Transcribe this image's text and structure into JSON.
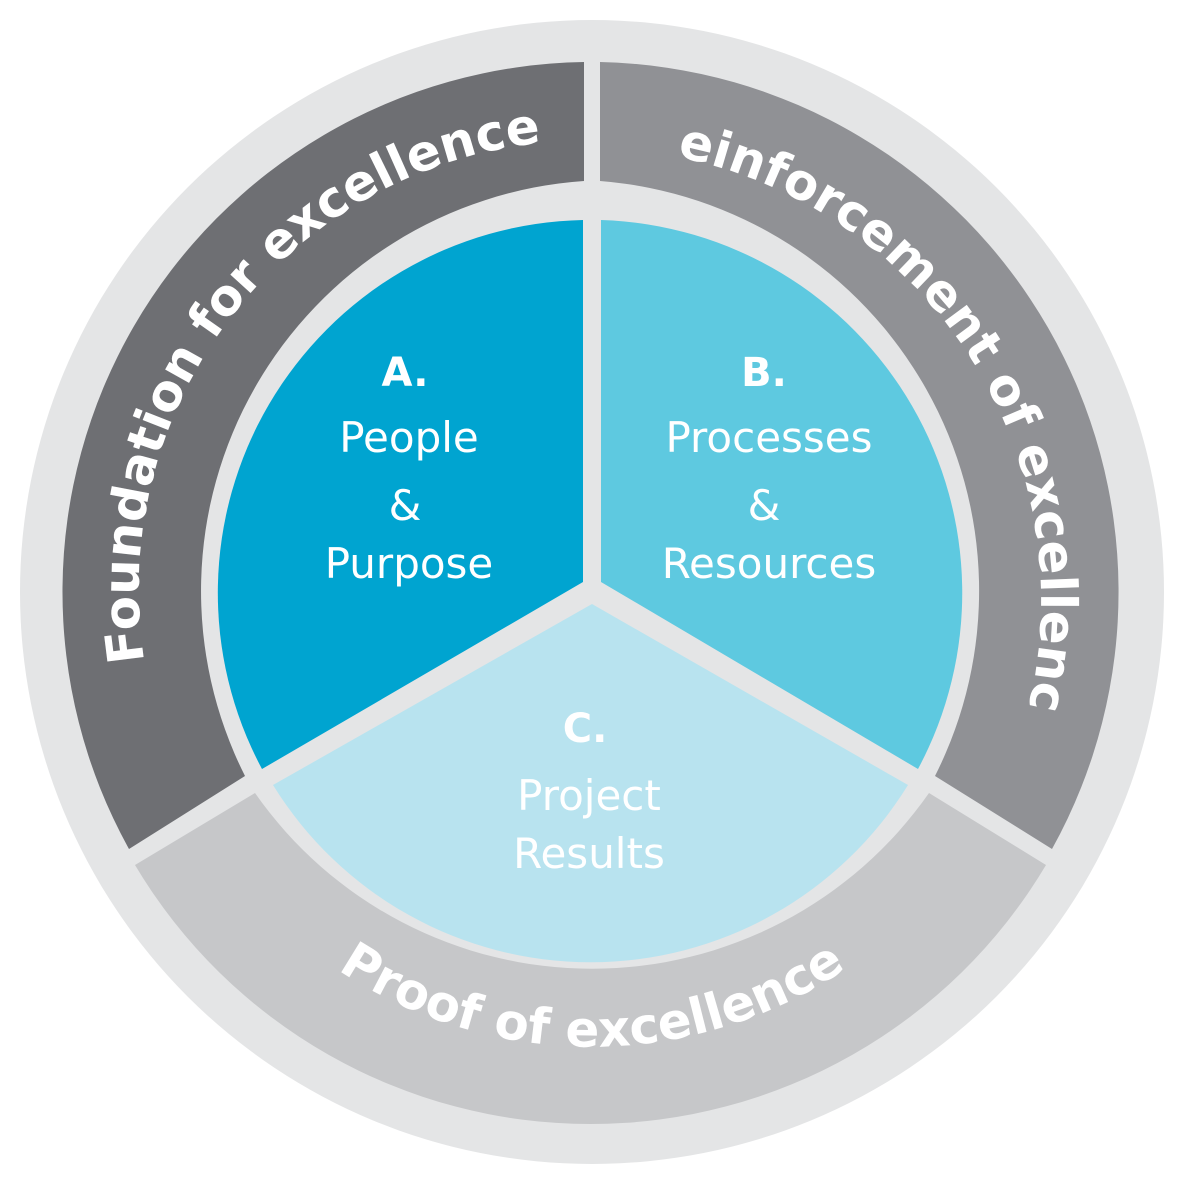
{
  "diagram": {
    "outer_ring": [
      {
        "label": "Foundation for excellence",
        "color": "#6e6f73"
      },
      {
        "label": "Reinforcement of excellence",
        "color": "#909195"
      },
      {
        "label": "Proof of excellence",
        "color": "#c6c7c9"
      }
    ],
    "inner_segments": [
      {
        "letter": "A.",
        "line1": "People",
        "amp": "&",
        "line2": "Purpose",
        "color": "#00a4d0"
      },
      {
        "letter": "B.",
        "line1": "Processes",
        "amp": "&",
        "line2": "Resources",
        "color": "#5ec9e0"
      },
      {
        "letter": "C.",
        "line1": "Project",
        "line2": "Results",
        "color": "#b8e3ef"
      }
    ],
    "border_color": "#e4e5e6"
  }
}
